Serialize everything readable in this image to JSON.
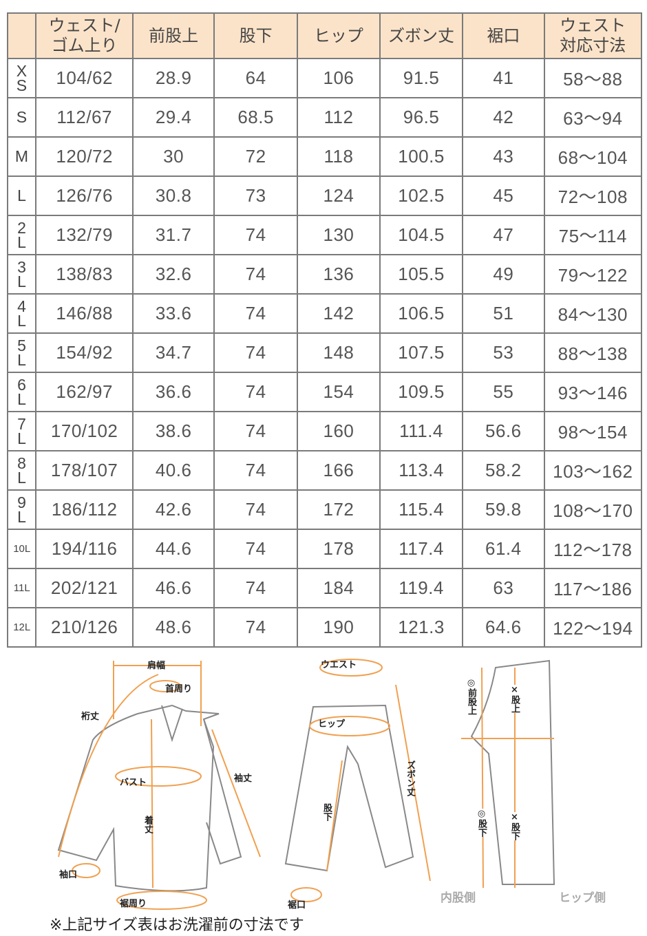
{
  "table": {
    "headers": [
      "",
      "ウェスト/\nゴム上り",
      "前股上",
      "股下",
      "ヒップ",
      "ズボン丈",
      "裾口",
      "ウェスト\n対応寸法"
    ],
    "rows": [
      [
        "XS",
        "104/62",
        "28.9",
        "64",
        "106",
        "91.5",
        "41",
        "58～88"
      ],
      [
        "S",
        "112/67",
        "29.4",
        "68.5",
        "112",
        "96.5",
        "42",
        "63～94"
      ],
      [
        "M",
        "120/72",
        "30",
        "72",
        "118",
        "100.5",
        "43",
        "68～104"
      ],
      [
        "L",
        "126/76",
        "30.8",
        "73",
        "124",
        "102.5",
        "45",
        "72～108"
      ],
      [
        "2L",
        "132/79",
        "31.7",
        "74",
        "130",
        "104.5",
        "47",
        "75～114"
      ],
      [
        "3L",
        "138/83",
        "32.6",
        "74",
        "136",
        "105.5",
        "49",
        "79～122"
      ],
      [
        "4L",
        "146/88",
        "33.6",
        "74",
        "142",
        "106.5",
        "51",
        "84～130"
      ],
      [
        "5L",
        "154/92",
        "34.7",
        "74",
        "148",
        "107.5",
        "53",
        "88～138"
      ],
      [
        "6L",
        "162/97",
        "36.6",
        "74",
        "154",
        "109.5",
        "55",
        "93～146"
      ],
      [
        "7L",
        "170/102",
        "38.6",
        "74",
        "160",
        "111.4",
        "56.6",
        "98～154"
      ],
      [
        "8L",
        "178/107",
        "40.6",
        "74",
        "166",
        "113.4",
        "58.2",
        "103～162"
      ],
      [
        "9L",
        "186/112",
        "42.6",
        "74",
        "172",
        "115.4",
        "59.8",
        "108～170"
      ],
      [
        "10L",
        "194/116",
        "44.6",
        "74",
        "178",
        "117.4",
        "61.4",
        "112～178"
      ],
      [
        "11L",
        "202/121",
        "46.6",
        "74",
        "184",
        "119.4",
        "63",
        "117～186"
      ],
      [
        "12L",
        "210/126",
        "48.6",
        "74",
        "190",
        "121.3",
        "64.6",
        "122～194"
      ]
    ]
  },
  "diagram": {
    "shirt": {
      "shoulder": "肩幅",
      "neck": "首周り",
      "yuki": "裄丈",
      "sleeve": "袖丈",
      "bust": "バスト",
      "length": "着丈",
      "cuff": "袖口",
      "hem": "裾周り"
    },
    "pants": {
      "waist": "ウエスト",
      "hip": "ヒップ",
      "length": "ズボン丈",
      "inseam": "股下",
      "hem": "裾口"
    },
    "side": {
      "front_rise": "◎前股上",
      "rise_x": "×股上",
      "inseam_o": "◎股下",
      "inseam_x": "×股下",
      "inner": "内股側",
      "hip_side": "ヒップ側"
    }
  },
  "accent_color": "#f0a050",
  "note": "※上記サイズ表はお洗濯前の寸法です"
}
